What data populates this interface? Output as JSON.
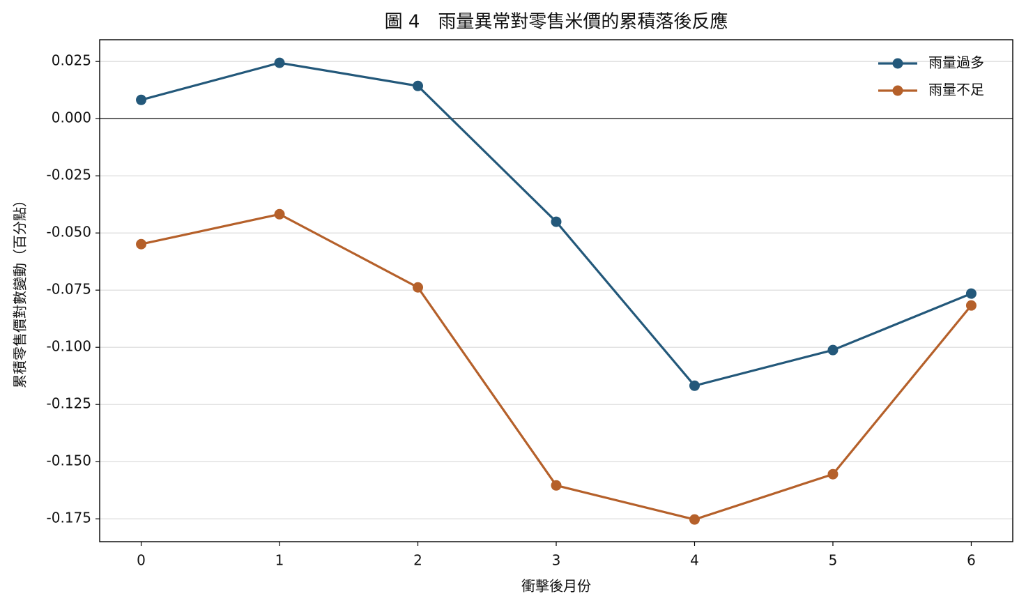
{
  "chart_data": {
    "type": "line",
    "title": "圖 4　雨量異常對零售米價的累積落後反應",
    "xlabel": "衝擊後月份",
    "ylabel": "累積零售價對數變動（百分點）",
    "x": [
      0,
      1,
      2,
      3,
      4,
      5,
      6
    ],
    "series": [
      {
        "name": "雨量過多",
        "color": "#23587a",
        "values": [
          0.0082,
          0.0244,
          0.0143,
          -0.0451,
          -0.1168,
          -0.1012,
          -0.0765
        ]
      },
      {
        "name": "雨量不足",
        "color": "#b5602a",
        "values": [
          -0.0549,
          -0.0418,
          -0.0738,
          -0.1604,
          -0.1753,
          -0.1555,
          -0.0817
        ]
      }
    ],
    "xlim": [
      -0.3,
      6.3
    ],
    "xticks": [
      0,
      1,
      2,
      3,
      4,
      5,
      6
    ],
    "ylim": [
      -0.185,
      0.0345
    ],
    "yticks": [
      0.025,
      {
        "value": 0,
        "label": "0.000"
      },
      -0.025,
      {
        "value": -0.05,
        "label": "-0.050"
      },
      -0.075,
      {
        "value": -0.1,
        "label": "-0.100"
      },
      -0.125,
      {
        "value": -0.15,
        "label": "-0.150"
      },
      -0.175
    ],
    "hline": 0,
    "grid": true,
    "legend": "upper right"
  }
}
